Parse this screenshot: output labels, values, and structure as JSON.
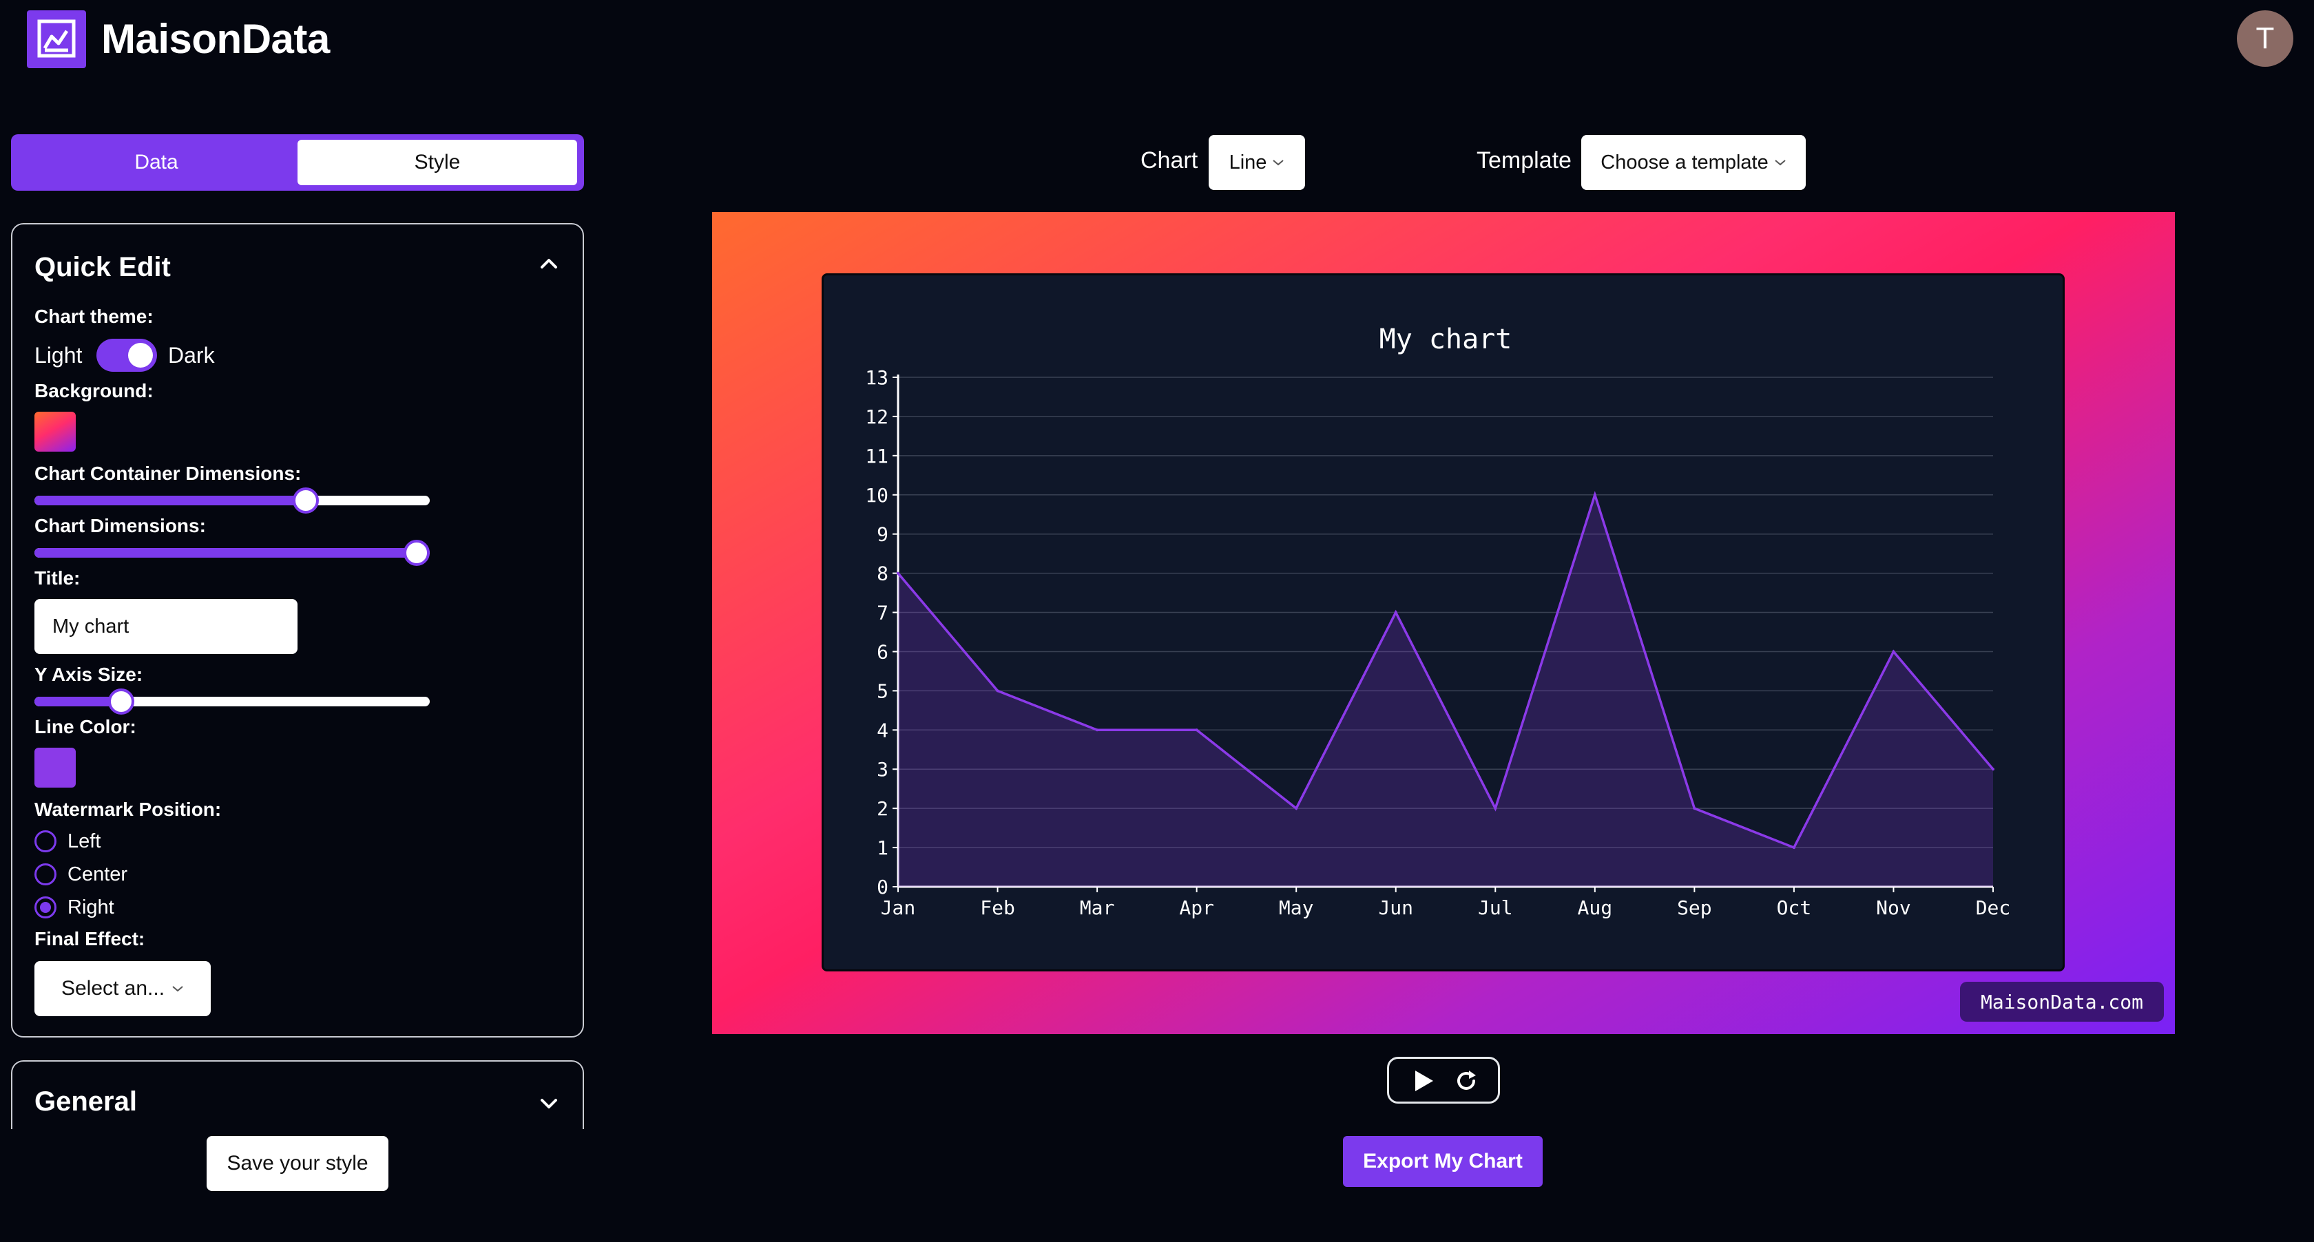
{
  "header": {
    "brand": "MaisonData",
    "avatar_initial": "T",
    "logo_icon": "chart-logo-icon"
  },
  "tabs": [
    {
      "label": "Data",
      "active": false
    },
    {
      "label": "Style",
      "active": true
    }
  ],
  "quick_edit": {
    "title": "Quick Edit",
    "chart_theme_label": "Chart theme:",
    "theme_light": "Light",
    "theme_dark": "Dark",
    "theme_dark_on": true,
    "background_label": "Background:",
    "container_dim_label": "Chart Container Dimensions:",
    "container_dim_value": 0.71,
    "chart_dim_label": "Chart Dimensions:",
    "chart_dim_value": 1.0,
    "title_label": "Title:",
    "title_value": "My chart",
    "y_axis_size_label": "Y Axis Size:",
    "y_axis_size_value": 0.2,
    "line_color_label": "Line Color:",
    "line_color": "#8b3ae8",
    "watermark_label": "Watermark Position:",
    "watermark_options": [
      "Left",
      "Center",
      "Right"
    ],
    "watermark_selected": "Right",
    "final_effect_label": "Final Effect:",
    "final_effect_value": "Select an..."
  },
  "general": {
    "title": "General"
  },
  "save_button": "Save your style",
  "toolbar": {
    "chart_label": "Chart",
    "chart_value": "Line",
    "template_label": "Template",
    "template_value": "Choose a template"
  },
  "watermark_text": "MaisonData.com",
  "export_button": "Export My Chart",
  "colors": {
    "accent": "#7c3aed",
    "line": "#8b3ae8",
    "card": "#0f1729"
  },
  "chart_data": {
    "type": "area",
    "title": "My chart",
    "categories": [
      "Jan",
      "Feb",
      "Mar",
      "Apr",
      "May",
      "Jun",
      "Jul",
      "Aug",
      "Sep",
      "Oct",
      "Nov",
      "Dec"
    ],
    "series": [
      {
        "values": [
          8,
          5,
          4,
          4,
          2,
          7,
          2,
          10,
          2,
          1,
          6,
          3
        ]
      }
    ],
    "yticks": [
      0,
      1,
      2,
      3,
      4,
      5,
      6,
      7,
      8,
      9,
      10,
      11,
      12,
      13
    ],
    "ylim": [
      0,
      13
    ],
    "grid": true,
    "xlabel": "",
    "ylabel": ""
  }
}
